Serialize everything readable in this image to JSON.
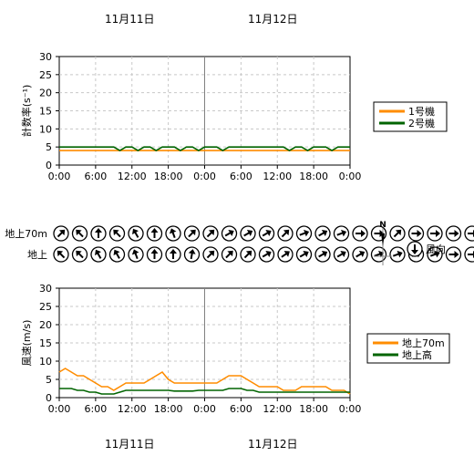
{
  "dates": [
    "11月11日",
    "11月12日"
  ],
  "chart_data": [
    {
      "type": "line",
      "ylabel": "計数率(s⁻¹)",
      "ylim": [
        0,
        30
      ],
      "yticks": [
        0,
        5,
        10,
        15,
        20,
        25,
        30
      ],
      "xticks": [
        "0:00",
        "6:00",
        "12:00",
        "18:00",
        "0:00",
        "6:00",
        "12:00",
        "18:00",
        "0:00"
      ],
      "grid": true,
      "legend_position": "right",
      "series": [
        {
          "name": "1号機",
          "color": "#ff8c00",
          "values": [
            4,
            4,
            4,
            4,
            4,
            4,
            4,
            4,
            4,
            4,
            4,
            4,
            4,
            4,
            4,
            4,
            4,
            4,
            4,
            4,
            4,
            4,
            4,
            4,
            4,
            4,
            4,
            4,
            4,
            4,
            4,
            4,
            4,
            4,
            4,
            4,
            4,
            4,
            4,
            4,
            4,
            4,
            4,
            4,
            4,
            4,
            4,
            4,
            4
          ]
        },
        {
          "name": "2号機",
          "color": "#006400",
          "values": [
            5,
            5,
            5,
            5,
            5,
            5,
            5,
            5,
            5,
            5,
            4,
            5,
            5,
            4,
            5,
            5,
            4,
            5,
            5,
            5,
            4,
            5,
            5,
            4,
            5,
            5,
            5,
            4,
            5,
            5,
            5,
            5,
            5,
            5,
            5,
            5,
            5,
            5,
            4,
            5,
            5,
            4,
            5,
            5,
            5,
            4,
            5,
            5,
            5
          ]
        }
      ]
    },
    {
      "type": "line",
      "ylabel": "風速(m/s)",
      "ylim": [
        0,
        30
      ],
      "yticks": [
        0,
        5,
        10,
        15,
        20,
        25,
        30
      ],
      "xticks": [
        "0:00",
        "6:00",
        "12:00",
        "18:00",
        "0:00",
        "6:00",
        "12:00",
        "18:00",
        "0:00"
      ],
      "grid": true,
      "legend_position": "right",
      "series": [
        {
          "name": "地上70m",
          "color": "#ff8c00",
          "values": [
            7,
            8,
            7,
            6,
            6,
            5,
            4,
            3,
            3,
            2,
            3,
            4,
            4,
            4,
            4,
            5,
            6,
            7,
            5,
            4,
            4,
            4,
            4,
            4,
            4,
            4,
            4,
            5,
            6,
            6,
            6,
            5,
            4,
            3,
            3,
            3,
            3,
            2,
            2,
            2,
            3,
            3,
            3,
            3,
            3,
            2,
            2,
            2,
            1
          ]
        },
        {
          "name": "地上高",
          "color": "#006400",
          "values": [
            2.5,
            2.5,
            2.5,
            2,
            2,
            1.5,
            1.5,
            1,
            1,
            1,
            1.5,
            2,
            2,
            2,
            2,
            2,
            2,
            2,
            2,
            1.8,
            1.8,
            1.8,
            1.8,
            2,
            2,
            2,
            2,
            2,
            2.5,
            2.5,
            2.5,
            2,
            2,
            1.5,
            1.5,
            1.5,
            1.5,
            1.5,
            1.5,
            1.5,
            1.5,
            1.5,
            1.5,
            1.5,
            1.5,
            1.5,
            1.5,
            1.5,
            1.5
          ]
        }
      ]
    }
  ],
  "wind_directions": {
    "row_labels": [
      "地上70m",
      "地上"
    ],
    "rows": [
      [
        225,
        135,
        180,
        135,
        150,
        180,
        160,
        225,
        225,
        240,
        240,
        240,
        225,
        250,
        240,
        250,
        270,
        270,
        225,
        270,
        270,
        270,
        270,
        270,
        315
      ],
      [
        135,
        135,
        150,
        150,
        160,
        180,
        180,
        190,
        225,
        225,
        225,
        240,
        235,
        240,
        240,
        240,
        240,
        250,
        250,
        250,
        250,
        270,
        270,
        270,
        270
      ]
    ],
    "compass_label": "N",
    "wind_legend_label": "風向"
  }
}
